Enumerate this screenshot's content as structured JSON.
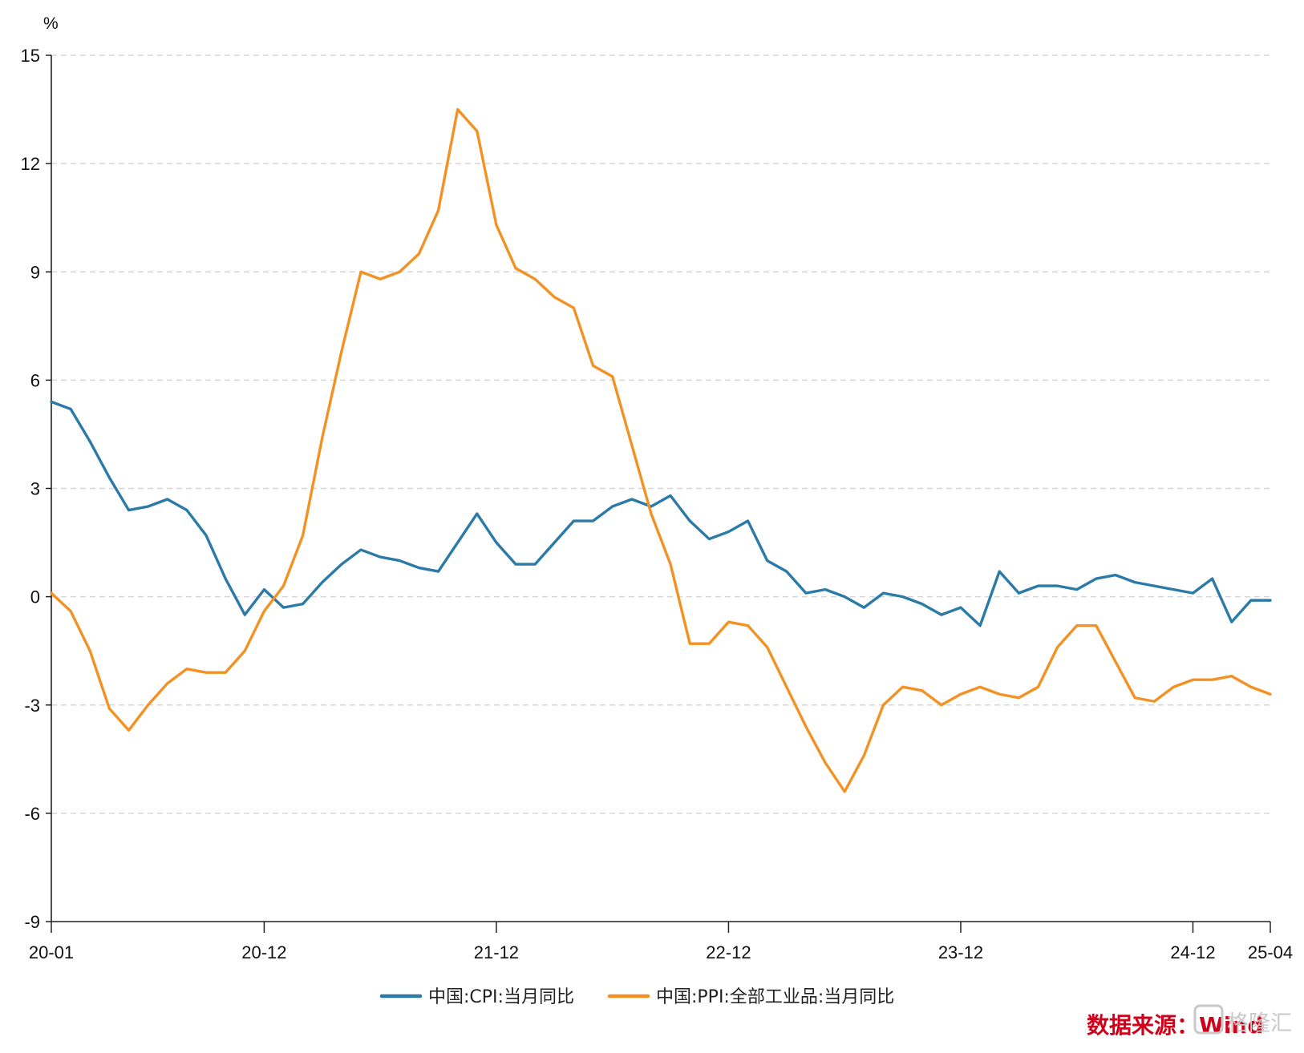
{
  "chart_data": {
    "type": "line",
    "unit": "%",
    "ylim": [
      -9,
      15
    ],
    "y_ticks": [
      15,
      12,
      9,
      6,
      3,
      0,
      -3,
      -6,
      -9
    ],
    "x_tick_labels": [
      {
        "month_index": 0,
        "label": "20-01"
      },
      {
        "month_index": 11,
        "label": "20-12"
      },
      {
        "month_index": 23,
        "label": "21-12"
      },
      {
        "month_index": 35,
        "label": "22-12"
      },
      {
        "month_index": 47,
        "label": "23-12"
      },
      {
        "month_index": 59,
        "label": "24-12"
      },
      {
        "month_index": 63,
        "label": "25-04"
      }
    ],
    "x_start": "2020-01",
    "x_end": "2025-04",
    "grid": "horizontal-dashed",
    "legend_position": "bottom-center",
    "series": [
      {
        "name": "中国:CPI:当月同比",
        "color": "#2b7aa8",
        "values": [
          5.4,
          5.2,
          4.3,
          3.3,
          2.4,
          2.5,
          2.7,
          2.4,
          1.7,
          0.5,
          -0.5,
          0.2,
          -0.3,
          -0.2,
          0.4,
          0.9,
          1.3,
          1.1,
          1.0,
          0.8,
          0.7,
          1.5,
          2.3,
          1.5,
          0.9,
          0.9,
          1.5,
          2.1,
          2.1,
          2.5,
          2.7,
          2.5,
          2.8,
          2.1,
          1.6,
          1.8,
          2.1,
          1.0,
          0.7,
          0.1,
          0.2,
          0.0,
          -0.3,
          0.1,
          0.0,
          -0.2,
          -0.5,
          -0.3,
          -0.8,
          0.7,
          0.1,
          0.3,
          0.3,
          0.2,
          0.5,
          0.6,
          0.4,
          0.3,
          0.2,
          0.1,
          0.5,
          -0.7,
          -0.1,
          -0.1
        ]
      },
      {
        "name": "中国:PPI:全部工业品:当月同比",
        "color": "#f39224",
        "values": [
          0.1,
          -0.4,
          -1.5,
          -3.1,
          -3.7,
          -3.0,
          -2.4,
          -2.0,
          -2.1,
          -2.1,
          -1.5,
          -0.4,
          0.3,
          1.7,
          4.4,
          6.8,
          9.0,
          8.8,
          9.0,
          9.5,
          10.7,
          13.5,
          12.9,
          10.3,
          9.1,
          8.8,
          8.3,
          8.0,
          6.4,
          6.1,
          4.2,
          2.3,
          0.9,
          -1.3,
          -1.3,
          -0.7,
          -0.8,
          -1.4,
          -2.5,
          -3.6,
          -4.6,
          -5.4,
          -4.4,
          -3.0,
          -2.5,
          -2.6,
          -3.0,
          -2.7,
          -2.5,
          -2.7,
          -2.8,
          -2.5,
          -1.4,
          -0.8,
          -0.8,
          -1.8,
          -2.8,
          -2.9,
          -2.5,
          -2.3,
          -2.3,
          -2.2,
          -2.5,
          -2.7
        ]
      }
    ]
  },
  "source": {
    "label": "数据来源：",
    "name": "Wind",
    "color": "#d0021b"
  },
  "watermark": {
    "text": "格隆汇"
  }
}
